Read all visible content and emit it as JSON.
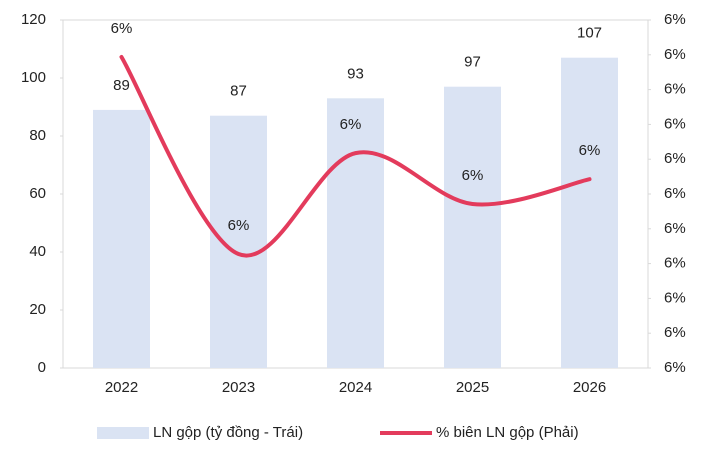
{
  "chart_data": {
    "type": "bar_line",
    "categories": [
      "2022",
      "2023",
      "2024",
      "2025",
      "2026"
    ],
    "series": [
      {
        "name": "LN gộp (tỷ đồng - Trái)",
        "type": "bar",
        "color": "#dae3f3",
        "values": [
          89,
          87,
          93,
          97,
          107
        ]
      },
      {
        "name": "% biên LN gộp (Phải)",
        "type": "line",
        "axis": "y2",
        "color": "#e33b5c",
        "values": [
          6.315,
          5.862,
          6.094,
          5.977,
          6.034
        ],
        "value_labels": [
          "6%",
          "6%",
          "6%",
          "6%",
          "6%"
        ]
      }
    ],
    "ylim": [
      0,
      120
    ],
    "yticks": [
      0,
      20,
      40,
      60,
      80,
      100,
      120
    ],
    "y2lim": [
      5.6,
      6.4
    ],
    "y2ticks": [
      {
        "value": 5.6,
        "label": "6%"
      },
      {
        "value": 5.68,
        "label": "6%"
      },
      {
        "value": 5.76,
        "label": "6%"
      },
      {
        "value": 5.84,
        "label": "6%"
      },
      {
        "value": 5.92,
        "label": "6%"
      },
      {
        "value": 6.0,
        "label": "6%"
      },
      {
        "value": 6.08,
        "label": "6%"
      },
      {
        "value": 6.16,
        "label": "6%"
      },
      {
        "value": 6.24,
        "label": "6%"
      },
      {
        "value": 6.32,
        "label": "6%"
      },
      {
        "value": 6.4,
        "label": "6%"
      }
    ],
    "legend": "bottom"
  }
}
